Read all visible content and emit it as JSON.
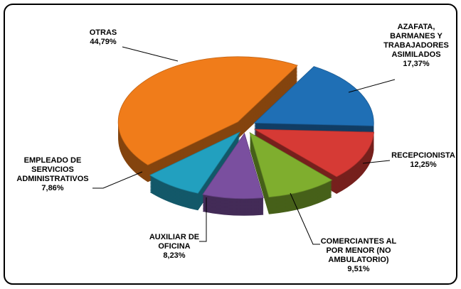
{
  "chart_data": {
    "type": "pie",
    "categories": [
      "OTRAS",
      "AZAFATA, BARMANES Y TRABAJADORES ASIMILADOS",
      "RECEPCIONISTA",
      "COMERCIANTES AL POR MENOR (NO AMBULATORIO)",
      "AUXILIAR DE OFICINA",
      "EMPLEADO DE SERVICIOS ADMINISTRATIVOS"
    ],
    "values": [
      44.79,
      17.37,
      12.25,
      9.51,
      8.23,
      7.86
    ],
    "value_labels": [
      "44,79%",
      "17,37%",
      "12,25%",
      "9,51%",
      "8,23%",
      "7,86%"
    ],
    "colors": [
      "#f07c1a",
      "#1f6fb5",
      "#d63a35",
      "#7fae2e",
      "#7a4f9f",
      "#22a0bf"
    ]
  }
}
